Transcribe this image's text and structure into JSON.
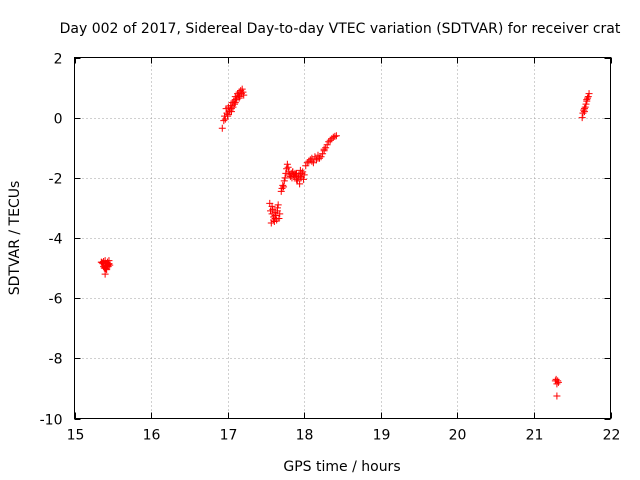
{
  "chart_data": {
    "type": "scatter",
    "title": "Day 002 of 2017, Sidereal Day-to-day VTEC variation (SDTVAR) for receiver crat",
    "xlabel": "GPS time / hours",
    "ylabel": "SDTVAR / TECUs",
    "xlim": [
      15,
      22
    ],
    "ylim": [
      -10,
      2
    ],
    "xticks": [
      15,
      16,
      17,
      18,
      19,
      20,
      21,
      22
    ],
    "yticks": [
      2,
      0,
      -2,
      -4,
      -6,
      -8,
      -10
    ],
    "grid": true,
    "marker": "plus",
    "color": "#ff0000",
    "series": [
      {
        "name": "crat",
        "x": [
          15.35,
          15.37,
          15.38,
          15.39,
          15.4,
          15.4,
          15.41,
          15.42,
          15.42,
          15.43,
          15.44,
          15.45,
          15.45,
          15.46,
          15.38,
          15.41,
          15.43,
          15.44,
          15.36,
          15.4,
          16.93,
          16.95,
          16.96,
          16.97,
          16.98,
          16.99,
          17.0,
          17.01,
          17.02,
          17.03,
          17.04,
          17.05,
          17.06,
          17.07,
          17.08,
          17.09,
          17.1,
          17.11,
          17.12,
          17.13,
          17.14,
          17.15,
          17.16,
          17.17,
          17.18,
          17.19,
          17.2,
          17.21,
          17.05,
          17.1,
          17.15,
          17.0,
          17.55,
          17.56,
          17.57,
          17.58,
          17.59,
          17.6,
          17.61,
          17.62,
          17.63,
          17.64,
          17.65,
          17.66,
          17.67,
          17.68,
          17.58,
          17.62,
          17.65,
          17.6,
          17.7,
          17.71,
          17.72,
          17.73,
          17.74,
          17.75,
          17.76,
          17.77,
          17.78,
          17.79,
          17.8,
          17.81,
          17.82,
          17.83,
          17.84,
          17.85,
          17.86,
          17.87,
          17.88,
          17.89,
          17.9,
          17.91,
          17.92,
          17.93,
          17.94,
          17.95,
          17.96,
          17.97,
          17.98,
          17.99,
          18.0,
          17.95,
          17.9,
          17.85,
          18.02,
          18.04,
          18.06,
          18.08,
          18.1,
          18.12,
          18.14,
          18.16,
          18.18,
          18.2,
          18.22,
          18.24,
          18.26,
          18.28,
          18.3,
          18.32,
          18.34,
          18.36,
          18.38,
          18.4,
          18.42,
          18.1,
          18.18,
          18.26,
          21.28,
          21.29,
          21.3,
          21.31,
          21.32,
          21.3,
          21.63,
          21.64,
          21.65,
          21.66,
          21.67,
          21.68,
          21.69,
          21.7,
          21.71,
          21.72,
          21.66,
          21.69
        ],
        "y": [
          -4.8,
          -4.85,
          -4.95,
          -5.0,
          -4.75,
          -5.2,
          -4.9,
          -4.85,
          -5.05,
          -4.8,
          -4.95,
          -4.85,
          -4.75,
          -4.9,
          -4.78,
          -5.02,
          -4.92,
          -4.88,
          -4.82,
          -4.98,
          -0.35,
          -0.1,
          0.05,
          -0.05,
          0.3,
          0.15,
          0.1,
          0.35,
          0.2,
          0.25,
          0.4,
          0.2,
          0.5,
          0.35,
          0.55,
          0.45,
          0.7,
          0.6,
          0.65,
          0.8,
          0.75,
          0.85,
          0.7,
          0.9,
          0.8,
          0.95,
          0.85,
          0.75,
          0.3,
          0.5,
          0.65,
          0.05,
          -2.85,
          -3.1,
          -3.5,
          -3.2,
          -3.05,
          -3.3,
          -3.45,
          -3.15,
          -3.25,
          -3.4,
          -3.0,
          -2.9,
          -3.35,
          -3.2,
          -2.95,
          -3.35,
          -3.1,
          -3.4,
          -2.45,
          -2.35,
          -2.25,
          -2.3,
          -2.1,
          -2.0,
          -1.85,
          -1.7,
          -1.55,
          -1.65,
          -1.8,
          -1.9,
          -1.95,
          -1.85,
          -2.0,
          -1.8,
          -1.9,
          -1.95,
          -1.85,
          -1.9,
          -2.05,
          -2.1,
          -2.0,
          -1.9,
          -2.2,
          -1.95,
          -2.0,
          -1.85,
          -1.8,
          -2.05,
          -1.9,
          -1.75,
          -1.85,
          -1.8,
          -1.6,
          -1.5,
          -1.45,
          -1.4,
          -1.35,
          -1.5,
          -1.3,
          -1.4,
          -1.25,
          -1.35,
          -1.3,
          -1.2,
          -1.1,
          -1.0,
          -0.9,
          -0.8,
          -0.75,
          -0.7,
          -0.65,
          -0.62,
          -0.6,
          -1.45,
          -1.35,
          -1.05,
          -8.75,
          -8.7,
          -8.85,
          -8.75,
          -8.8,
          -9.25,
          0.0,
          0.15,
          0.25,
          0.2,
          0.35,
          0.45,
          0.55,
          0.65,
          0.7,
          0.8,
          0.3,
          0.6
        ]
      }
    ]
  }
}
